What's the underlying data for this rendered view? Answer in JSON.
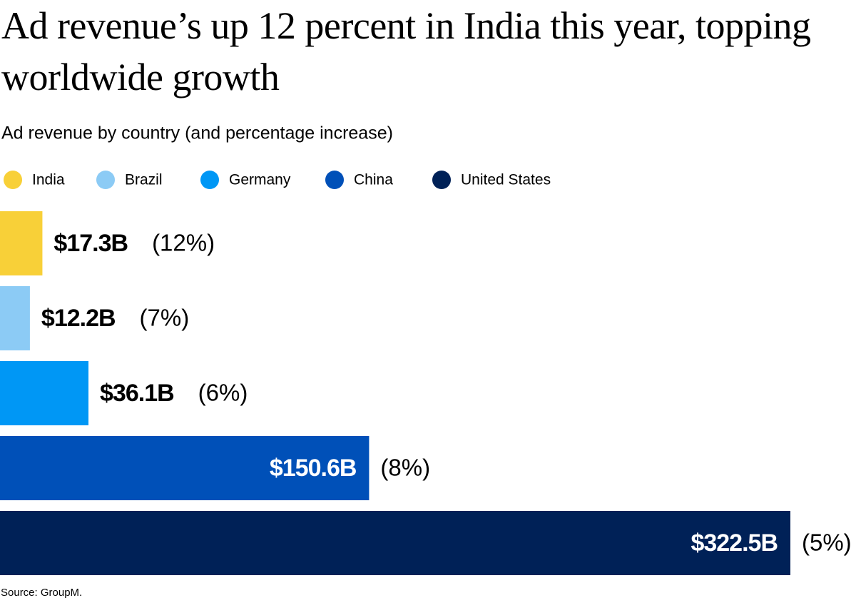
{
  "chart_data": {
    "type": "bar",
    "orientation": "horizontal",
    "title": "Ad revenue’s up 12 percent in India this year, topping worldwide growth",
    "subtitle": "Ad revenue by country (and percentage increase)",
    "categories": [
      "India",
      "Brazil",
      "Germany",
      "China",
      "United States"
    ],
    "colors": [
      "#f8d038",
      "#8ccbf5",
      "#0097f5",
      "#0050b8",
      "#002157"
    ],
    "values": [
      17.3,
      12.2,
      36.1,
      150.6,
      322.5
    ],
    "value_labels": [
      "$17.3B",
      "$12.2B",
      "$36.1B",
      "$150.6B",
      "$322.5B"
    ],
    "percent_increase": [
      12,
      7,
      6,
      8,
      5
    ],
    "percent_increase_labels": [
      "(12%)",
      "(7%)",
      "(6%)",
      "(8%)",
      "(5%)"
    ],
    "legend": true,
    "source": "Source: GroupM."
  }
}
